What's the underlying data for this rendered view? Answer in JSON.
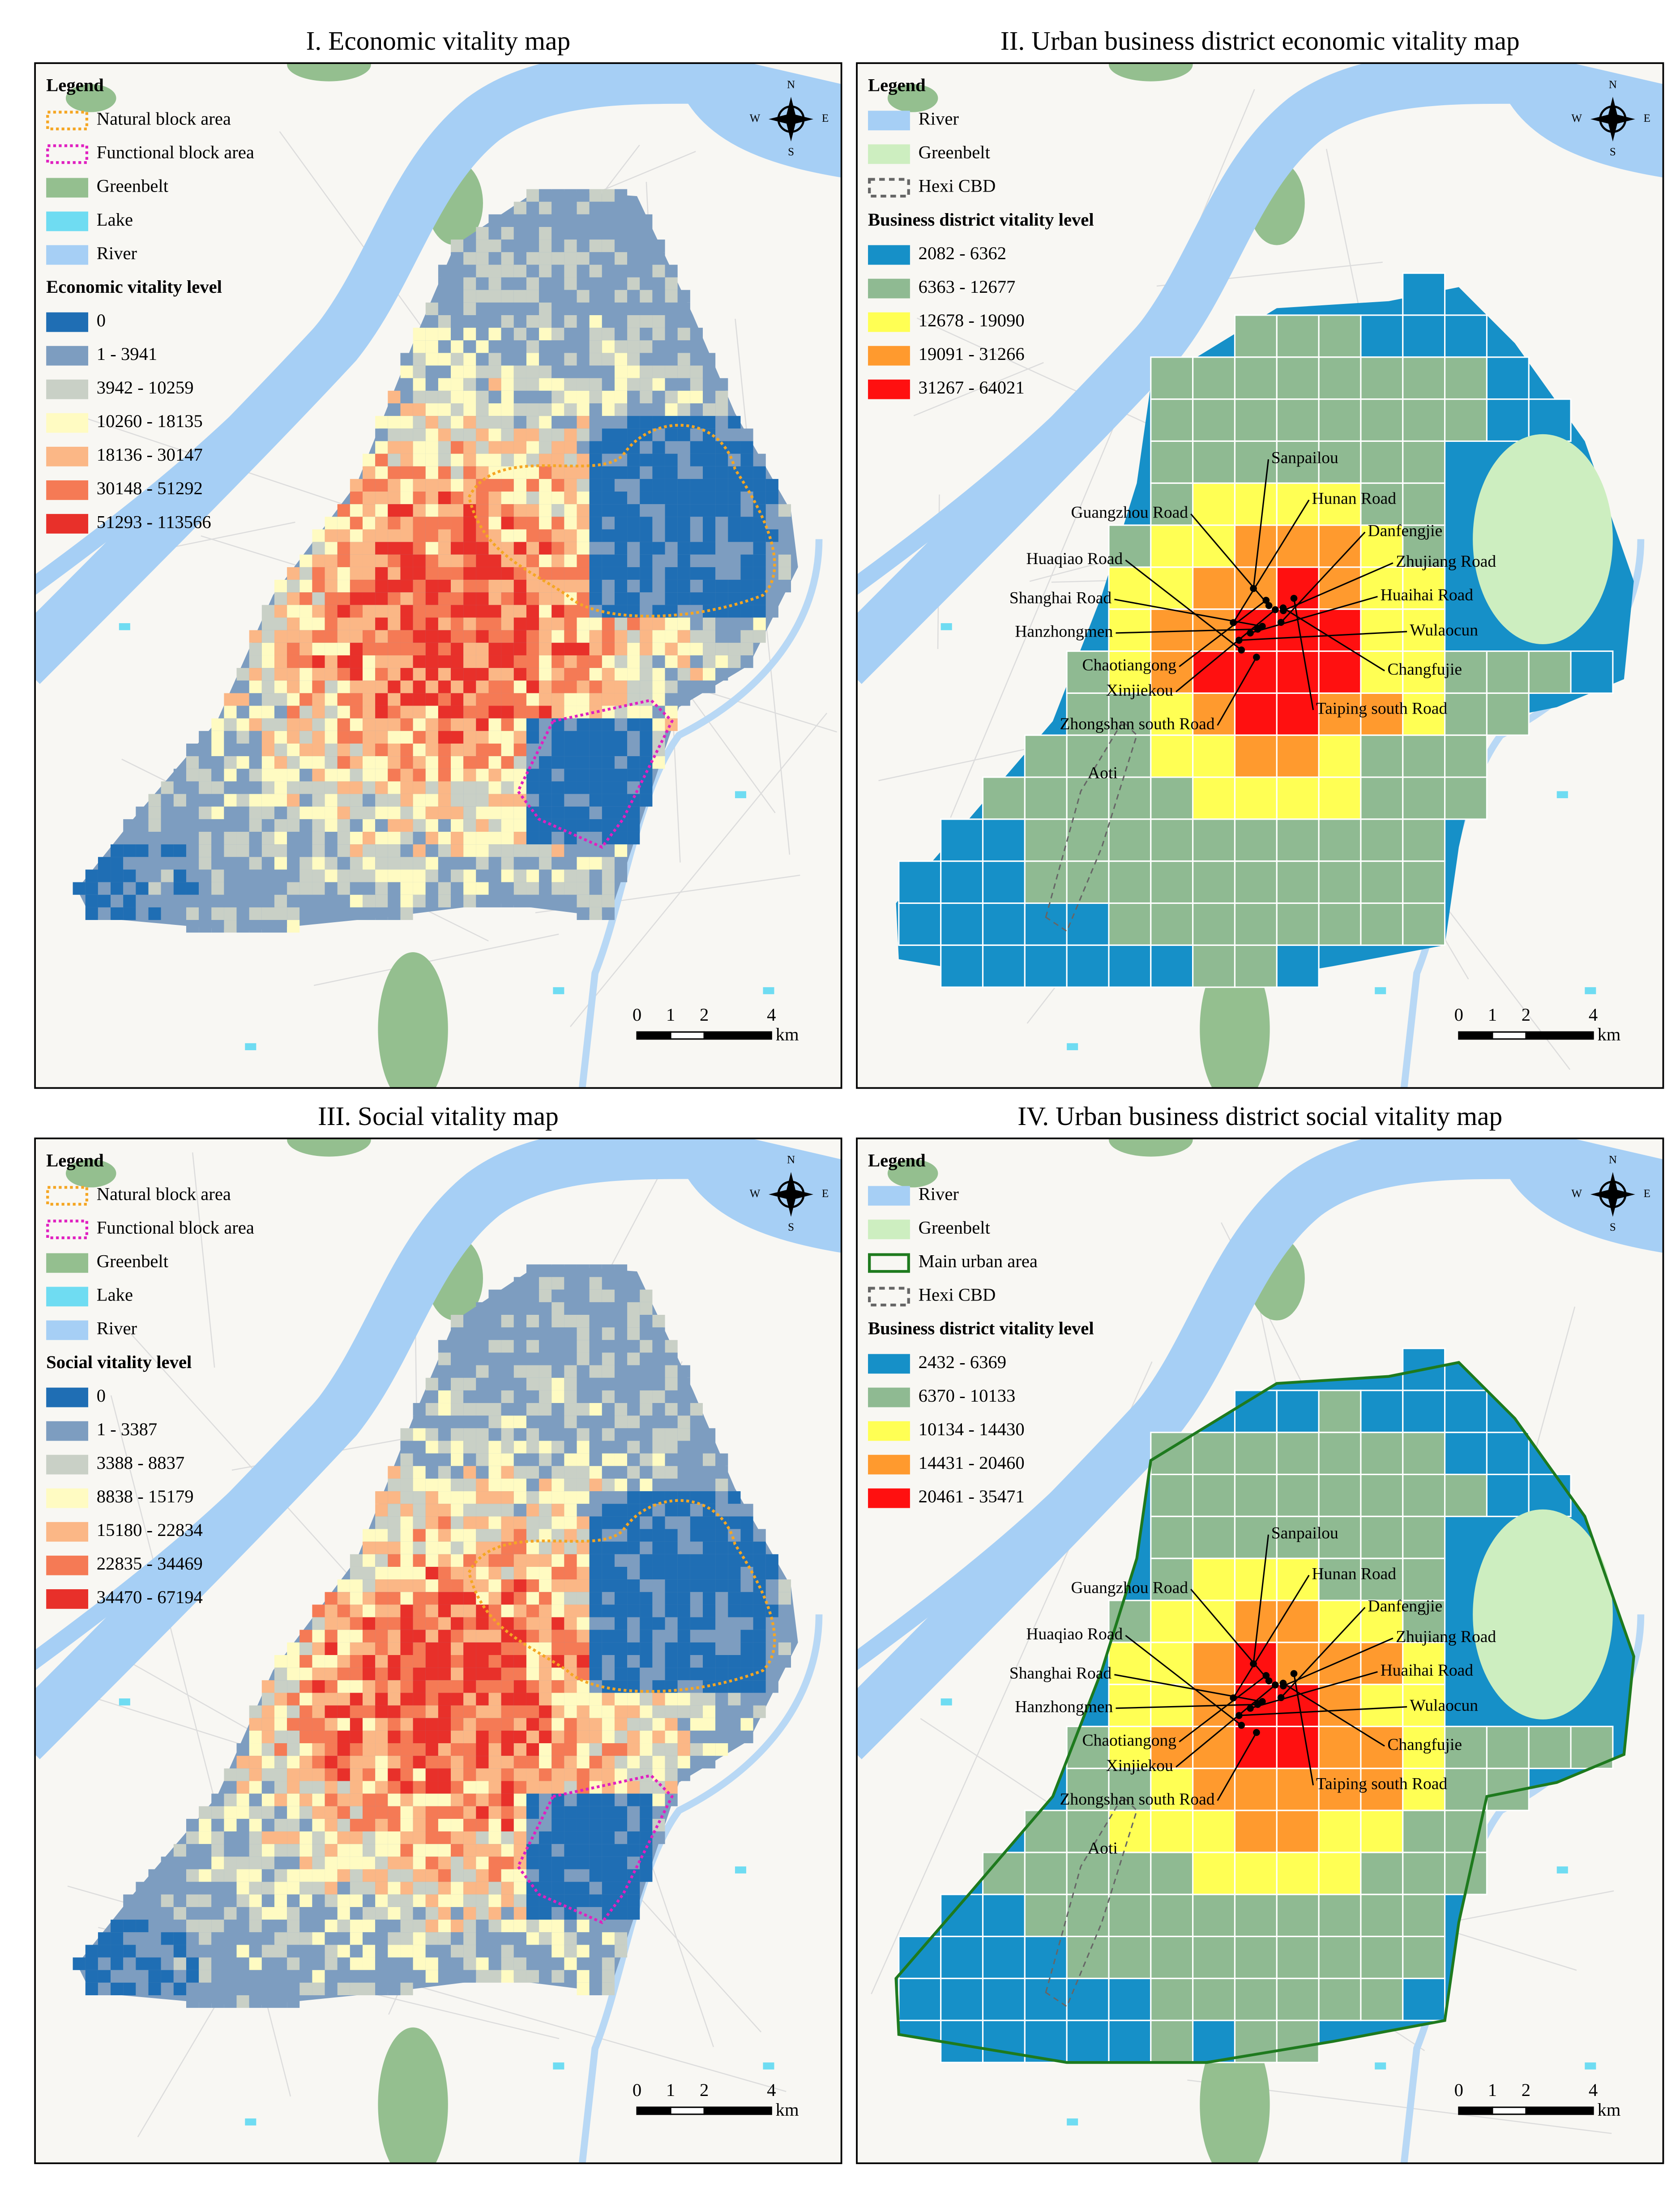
{
  "panels": [
    {
      "title": "I. Economic vitality map",
      "legend_title": "Legend",
      "items": [
        {
          "label": "Natural block area",
          "color": "#f5a623",
          "style": "dotted"
        },
        {
          "label": "Functional block area",
          "color": "#e020c0",
          "style": "dotted"
        },
        {
          "label": "Greenbelt",
          "color": "#94bf8f",
          "style": "fill"
        },
        {
          "label": "Lake",
          "color": "#6fdcf2",
          "style": "fill"
        },
        {
          "label": "River",
          "color": "#a6cff5",
          "style": "fill"
        }
      ],
      "level_title": "Economic vitality level",
      "levels": [
        {
          "label": "0",
          "color": "#1f6eb4"
        },
        {
          "label": "1 - 3941",
          "color": "#7d9dc0"
        },
        {
          "label": "3942 - 10259",
          "color": "#c9d0c6"
        },
        {
          "label": "10260 - 18135",
          "color": "#fffbc2"
        },
        {
          "label": "18136 - 30147",
          "color": "#fbb786"
        },
        {
          "label": "30148 - 51292",
          "color": "#f57a55"
        },
        {
          "label": "51293 - 113566",
          "color": "#e8302a"
        }
      ],
      "map": "grid",
      "scale": [
        "0",
        "1",
        "2",
        "4",
        "km"
      ],
      "compass": [
        "N",
        "W",
        "E",
        "S"
      ]
    },
    {
      "title": "II. Urban business district economic vitality map",
      "legend_title": "Legend",
      "items": [
        {
          "label": "River",
          "color": "#a6cff5",
          "style": "fill"
        },
        {
          "label": "Greenbelt",
          "color": "#cdeec0",
          "style": "fill"
        },
        {
          "label": "Hexi CBD",
          "color": "#666666",
          "style": "dashed"
        }
      ],
      "level_title": "Business district vitality level",
      "levels": [
        {
          "label": "2082 - 6362",
          "color": "#1690c8"
        },
        {
          "label": "6363 - 12677",
          "color": "#8fba92"
        },
        {
          "label": "12678 - 19090",
          "color": "#ffff54"
        },
        {
          "label": "19091 - 31266",
          "color": "#ff9a2e"
        },
        {
          "label": "31267 - 64021",
          "color": "#ff1010"
        }
      ],
      "map": "districts",
      "labels": [
        "Sanpailou",
        "Hunan Road",
        "Guangzhou Road",
        "Danfengjie",
        "Huaqiao Road",
        "Zhujiang Road",
        "Shanghai Road",
        "Huaihai Road",
        "Hanzhongmen",
        "Wulaocun",
        "Chaotiangong",
        "Changfujie",
        "Xinjiekou",
        "Zhongshan south Road",
        "Taiping south Road",
        "Aoti"
      ],
      "scale": [
        "0",
        "1",
        "2",
        "4",
        "km"
      ],
      "compass": [
        "N",
        "W",
        "E",
        "S"
      ]
    },
    {
      "title": "III. Social vitality map",
      "legend_title": "Legend",
      "items": [
        {
          "label": "Natural block area",
          "color": "#f5a623",
          "style": "dotted"
        },
        {
          "label": "Functional block area",
          "color": "#e020c0",
          "style": "dotted"
        },
        {
          "label": "Greenbelt",
          "color": "#94bf8f",
          "style": "fill"
        },
        {
          "label": "Lake",
          "color": "#6fdcf2",
          "style": "fill"
        },
        {
          "label": "River",
          "color": "#a6cff5",
          "style": "fill"
        }
      ],
      "level_title": "Social vitality level",
      "levels": [
        {
          "label": "0",
          "color": "#1f6eb4"
        },
        {
          "label": "1 - 3387",
          "color": "#7d9dc0"
        },
        {
          "label": "3388 - 8837",
          "color": "#c9d0c6"
        },
        {
          "label": "8838 - 15179",
          "color": "#fffbc2"
        },
        {
          "label": "15180 - 22834",
          "color": "#fbb786"
        },
        {
          "label": "22835 - 34469",
          "color": "#f57a55"
        },
        {
          "label": "34470 - 67194",
          "color": "#e8302a"
        }
      ],
      "map": "grid",
      "scale": [
        "0",
        "1",
        "2",
        "4",
        "km"
      ],
      "compass": [
        "N",
        "W",
        "E",
        "S"
      ]
    },
    {
      "title": "IV. Urban business district social vitality map",
      "legend_title": "Legend",
      "items": [
        {
          "label": "River",
          "color": "#a6cff5",
          "style": "fill"
        },
        {
          "label": "Greenbelt",
          "color": "#cdeec0",
          "style": "fill"
        },
        {
          "label": "Main urban area",
          "color": "#1e7a1e",
          "style": "outline"
        },
        {
          "label": "Hexi CBD",
          "color": "#666666",
          "style": "dashed"
        }
      ],
      "level_title": "Business district vitality level",
      "levels": [
        {
          "label": "2432 - 6369",
          "color": "#1690c8"
        },
        {
          "label": "6370 - 10133",
          "color": "#8fba92"
        },
        {
          "label": "10134 - 14430",
          "color": "#ffff54"
        },
        {
          "label": "14431 - 20460",
          "color": "#ff9a2e"
        },
        {
          "label": "20461 - 35471",
          "color": "#ff1010"
        }
      ],
      "map": "districts",
      "labels": [
        "Sanpailou",
        "Hunan Road",
        "Guangzhou Road",
        "Danfengjie",
        "Huaqiao Road",
        "Zhujiang Road",
        "Shanghai Road",
        "Huaihai Road",
        "Hanzhongmen",
        "Wulaocun",
        "Chaotiangong",
        "Changfujie",
        "Xinjiekou",
        "Zhongshan south Road",
        "Taiping south Road",
        "Aoti"
      ],
      "scale": [
        "0",
        "1",
        "2",
        "4",
        "km"
      ],
      "compass": [
        "N",
        "W",
        "E",
        "S"
      ]
    }
  ]
}
